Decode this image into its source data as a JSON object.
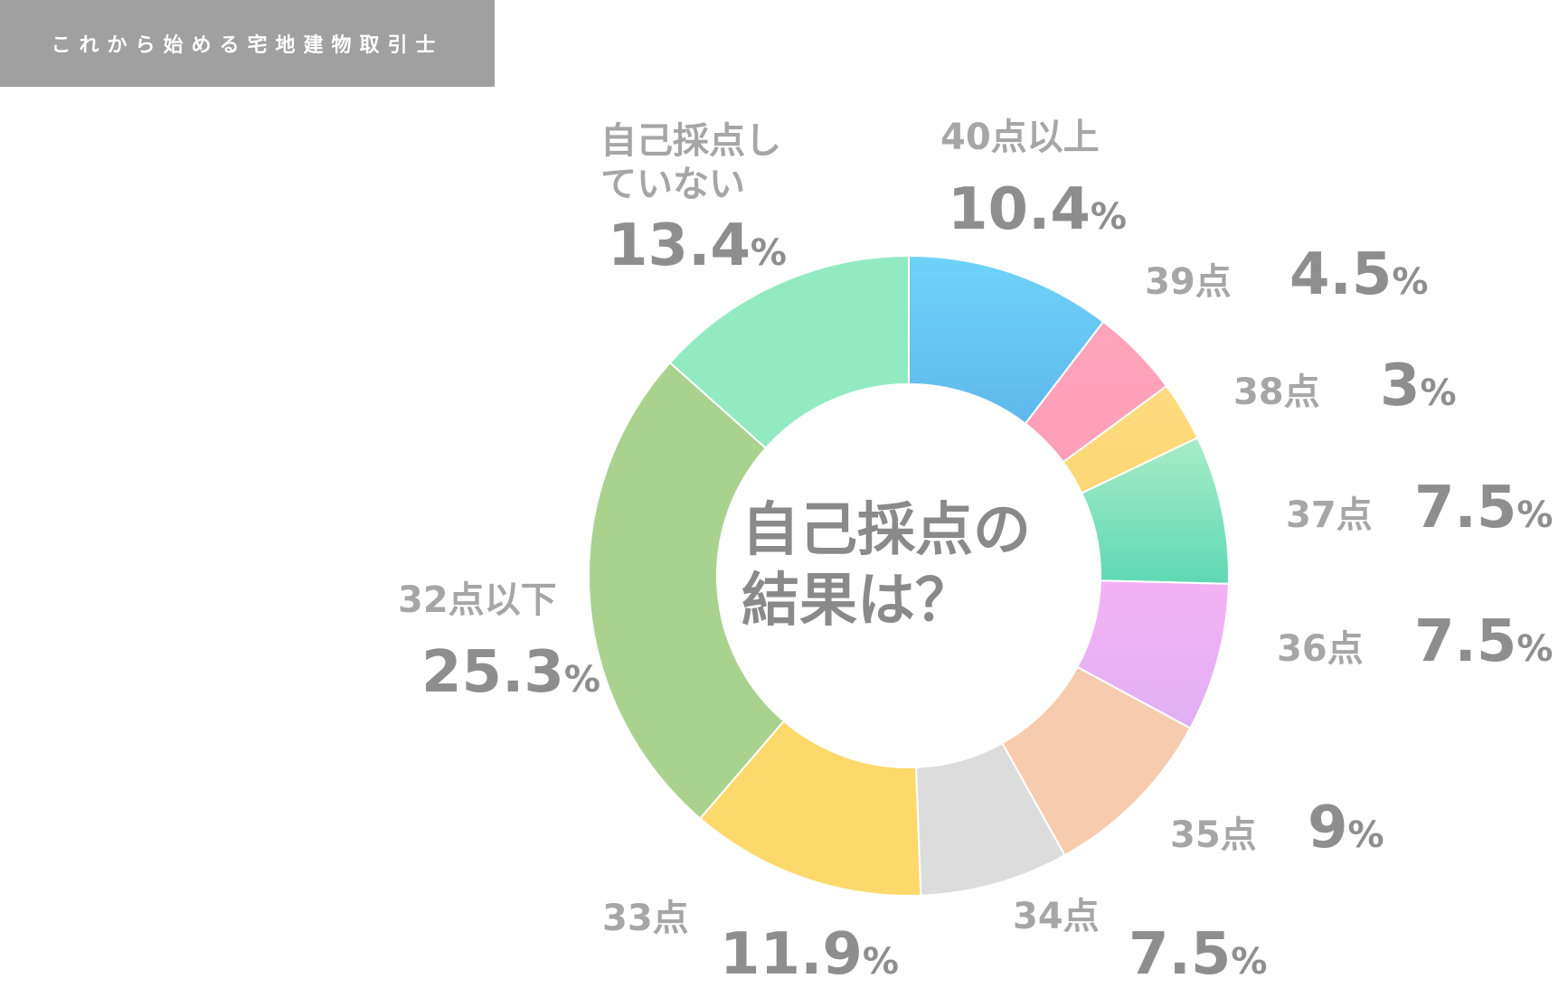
{
  "brand": {
    "text": "これから始める宅地建物取引士"
  },
  "center_title": {
    "line1": "自己採点の",
    "line2": "結果は？"
  },
  "colors": {
    "text_label": "#a6a6a6",
    "text_value": "#8e8e8e",
    "brand_bg": "#a0a0a0"
  },
  "chart_data": {
    "type": "pie",
    "donut": true,
    "unit": "%",
    "slices": [
      {
        "label": "40点以上",
        "value": 10.4,
        "color_top": "#6fd3f9",
        "color_bottom": "#5fb8ec"
      },
      {
        "label": "39点",
        "value": 4.5,
        "color_top": "#ffa4bb",
        "color_bottom": "#ff9fb7"
      },
      {
        "label": "38点",
        "value": 3,
        "color_top": "#ffdb7f",
        "color_bottom": "#fdd674"
      },
      {
        "label": "37点",
        "value": 7.5,
        "color_top": "#a8ecc8",
        "color_bottom": "#5ed8b4"
      },
      {
        "label": "36点",
        "value": 7.5,
        "color_top": "#f4b2f4",
        "color_bottom": "#e0b0f3"
      },
      {
        "label": "35点",
        "value": 9,
        "color_top": "#f7cbae",
        "color_bottom": "#f7cbae"
      },
      {
        "label": "34点",
        "value": 7.5,
        "color_top": "#dcdcdc",
        "color_bottom": "#dcdcdc"
      },
      {
        "label": "33点",
        "value": 11.9,
        "color_top": "#fdd86a",
        "color_bottom": "#fdd86a"
      },
      {
        "label": "32点以下",
        "value": 25.3,
        "color_top": "#a9d28e",
        "color_bottom": "#a9d28e"
      },
      {
        "label": "自己採点していない",
        "label_lines": [
          "自己採点し",
          "ていない"
        ],
        "value": 13.4,
        "color_top": "#92eac2",
        "color_bottom": "#92eac2"
      }
    ]
  }
}
